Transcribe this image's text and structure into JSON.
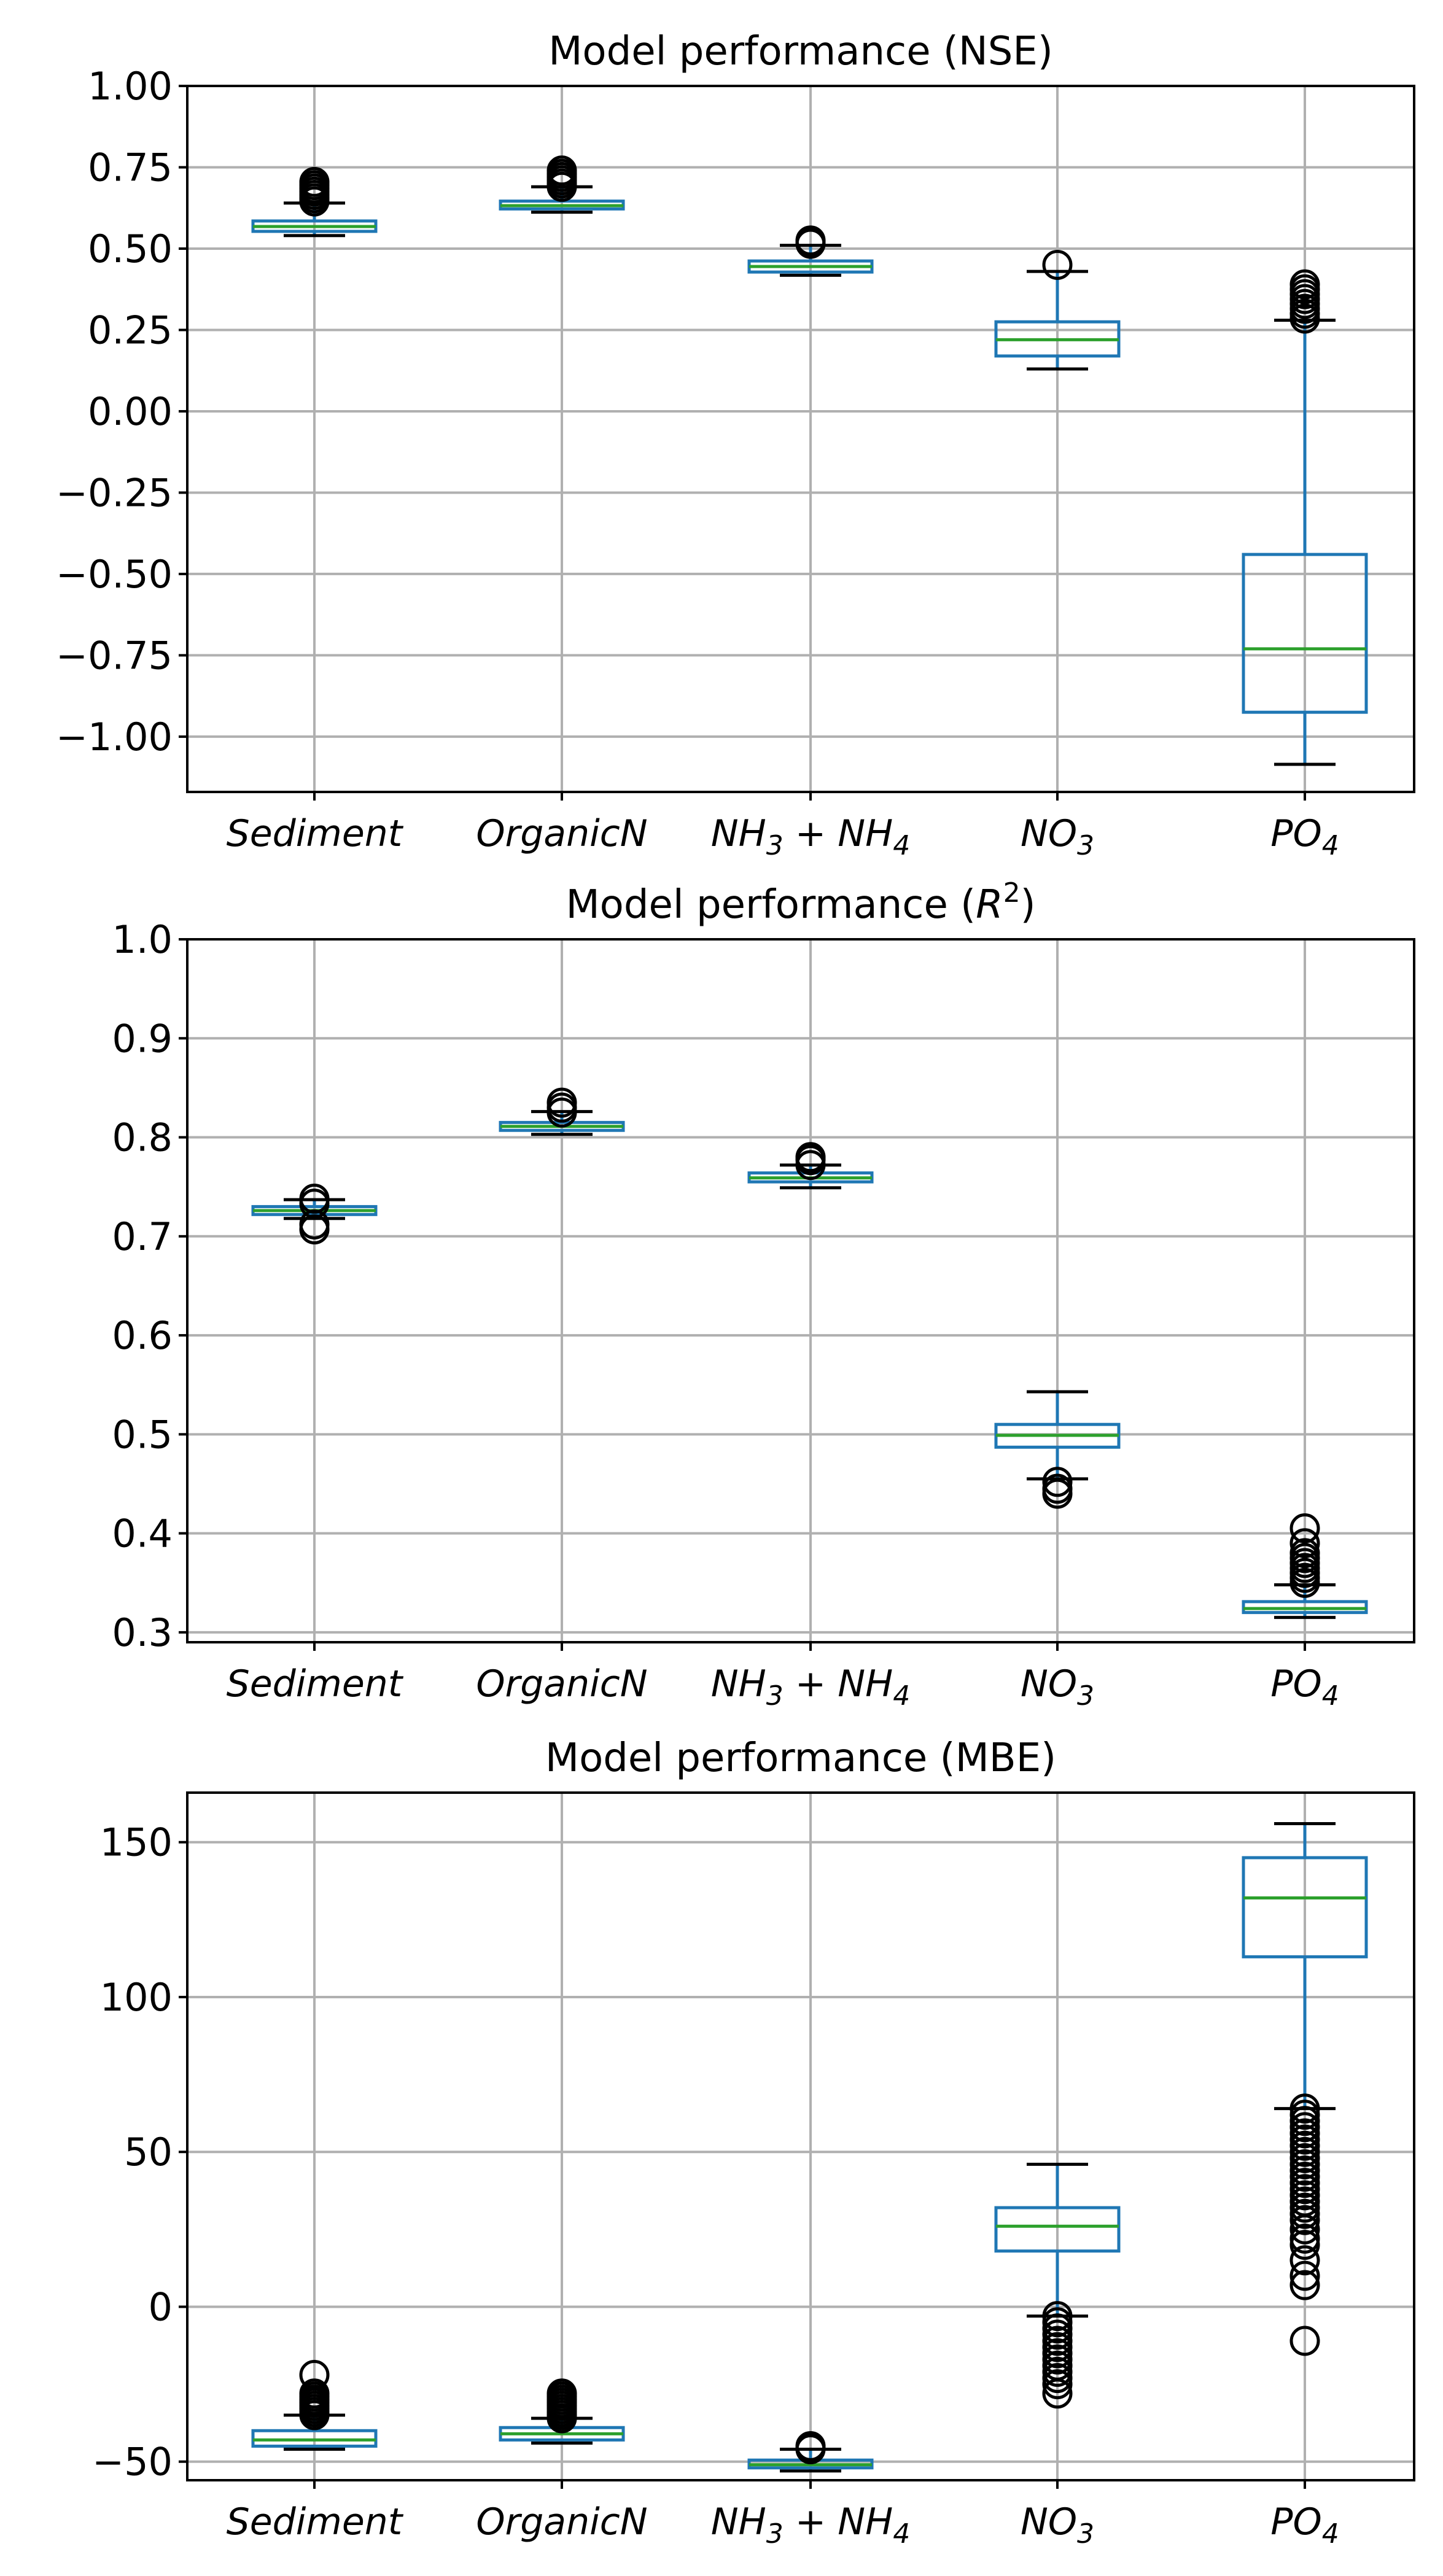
{
  "chart_data": [
    {
      "type": "boxplot",
      "title": "Model performance (NSE)",
      "title_main": "Model performance (NSE)",
      "categories": [
        "Sediment",
        "OrganicN",
        "NH3 + NH4",
        "NO3",
        "PO4"
      ],
      "ylim": [
        -1.17,
        1.0
      ],
      "yticks": [
        -1.0,
        -0.75,
        -0.5,
        -0.25,
        0.0,
        0.25,
        0.5,
        0.75,
        1.0
      ],
      "ytick_labels": [
        "−1.00",
        "−0.75",
        "−0.50",
        "−0.25",
        "0.00",
        "0.25",
        "0.50",
        "0.75",
        "1.00"
      ],
      "boxes": [
        {
          "name": "Sediment",
          "whislo": 0.54,
          "q1": 0.553,
          "med": 0.568,
          "q3": 0.585,
          "whishi": 0.64,
          "fliers": [
            0.645,
            0.655,
            0.665,
            0.675,
            0.685,
            0.695,
            0.705
          ]
        },
        {
          "name": "OrganicN",
          "whislo": 0.612,
          "q1": 0.622,
          "med": 0.632,
          "q3": 0.646,
          "whishi": 0.69,
          "fliers": [
            0.69,
            0.7,
            0.71,
            0.72,
            0.73,
            0.74
          ]
        },
        {
          "name": "NH3 + NH4",
          "whislo": 0.418,
          "q1": 0.428,
          "med": 0.445,
          "q3": 0.462,
          "whishi": 0.51,
          "fliers": [
            0.515,
            0.52,
            0.525
          ]
        },
        {
          "name": "NO3",
          "whislo": 0.13,
          "q1": 0.17,
          "med": 0.22,
          "q3": 0.275,
          "whishi": 0.43,
          "fliers": [
            0.45
          ]
        },
        {
          "name": "PO4",
          "whislo": -1.085,
          "q1": -0.925,
          "med": -0.73,
          "q3": -0.44,
          "whishi": 0.28,
          "fliers": [
            0.285,
            0.3,
            0.315,
            0.33,
            0.345,
            0.36,
            0.375,
            0.39
          ]
        }
      ]
    },
    {
      "type": "boxplot",
      "title": "Model performance (R^2)",
      "title_main": "Model performance (",
      "title_italic": "R",
      "title_sup": "2",
      "title_close": ")",
      "categories": [
        "Sediment",
        "OrganicN",
        "NH3 + NH4",
        "NO3",
        "PO4"
      ],
      "ylim": [
        0.29,
        1.0
      ],
      "yticks": [
        0.3,
        0.4,
        0.5,
        0.6,
        0.7,
        0.8,
        0.9,
        1.0
      ],
      "ytick_labels": [
        "0.3",
        "0.4",
        "0.5",
        "0.6",
        "0.7",
        "0.8",
        "0.9",
        "1.0"
      ],
      "boxes": [
        {
          "name": "Sediment",
          "whislo": 0.718,
          "q1": 0.722,
          "med": 0.726,
          "q3": 0.73,
          "whishi": 0.737,
          "fliers": [
            0.707,
            0.712,
            0.733,
            0.738
          ]
        },
        {
          "name": "OrganicN",
          "whislo": 0.803,
          "q1": 0.807,
          "med": 0.811,
          "q3": 0.815,
          "whishi": 0.826,
          "fliers": [
            0.825,
            0.83,
            0.835
          ]
        },
        {
          "name": "NH3 + NH4",
          "whislo": 0.749,
          "q1": 0.755,
          "med": 0.759,
          "q3": 0.764,
          "whishi": 0.772,
          "fliers": [
            0.772,
            0.777,
            0.78
          ]
        },
        {
          "name": "NO3",
          "whislo": 0.455,
          "q1": 0.487,
          "med": 0.499,
          "q3": 0.51,
          "whishi": 0.543,
          "fliers": [
            0.44,
            0.445,
            0.452
          ]
        },
        {
          "name": "PO4",
          "whislo": 0.315,
          "q1": 0.32,
          "med": 0.324,
          "q3": 0.331,
          "whishi": 0.348,
          "fliers": [
            0.35,
            0.355,
            0.36,
            0.365,
            0.37,
            0.375,
            0.38,
            0.39,
            0.405
          ]
        }
      ]
    },
    {
      "type": "boxplot",
      "title": "Model performance (MBE)",
      "title_main": "Model performance (MBE)",
      "categories": [
        "Sediment",
        "OrganicN",
        "NH3 + NH4",
        "NO3",
        "PO4"
      ],
      "ylim": [
        -56,
        166
      ],
      "yticks": [
        -50,
        0,
        50,
        100,
        150
      ],
      "ytick_labels": [
        "−50",
        "0",
        "50",
        "100",
        "150"
      ],
      "boxes": [
        {
          "name": "Sediment",
          "whislo": -46,
          "q1": -45,
          "med": -43,
          "q3": -40,
          "whishi": -35,
          "fliers": [
            -35,
            -34,
            -33,
            -32,
            -31,
            -30,
            -29,
            -28,
            -22
          ]
        },
        {
          "name": "OrganicN",
          "whislo": -44,
          "q1": -43,
          "med": -41,
          "q3": -39,
          "whishi": -36,
          "fliers": [
            -36,
            -35,
            -34,
            -33,
            -32,
            -31,
            -30,
            -29,
            -28
          ]
        },
        {
          "name": "NH3 + NH4",
          "whislo": -53,
          "q1": -52,
          "med": -51,
          "q3": -49.5,
          "whishi": -46,
          "fliers": [
            -46,
            -45.5,
            -45
          ]
        },
        {
          "name": "NO3",
          "whislo": -3,
          "q1": 18,
          "med": 26,
          "q3": 32,
          "whishi": 46,
          "fliers": [
            -3,
            -5,
            -7,
            -9,
            -11,
            -13,
            -15,
            -17,
            -19,
            -21,
            -23,
            -25,
            -28
          ]
        },
        {
          "name": "PO4",
          "whislo": 64,
          "q1": 113,
          "med": 132,
          "q3": 145,
          "whishi": 156,
          "fliers": [
            64,
            62,
            60,
            58,
            56,
            54,
            52,
            50,
            48,
            46,
            44,
            42,
            40,
            38,
            36,
            34,
            32,
            30,
            28,
            25,
            22,
            20,
            15,
            10,
            7,
            -11
          ]
        }
      ]
    }
  ],
  "colors": {
    "box": "#1f77b4",
    "median": "#2ca02c",
    "flier": "#000000",
    "grid": "#b0b0b0"
  }
}
